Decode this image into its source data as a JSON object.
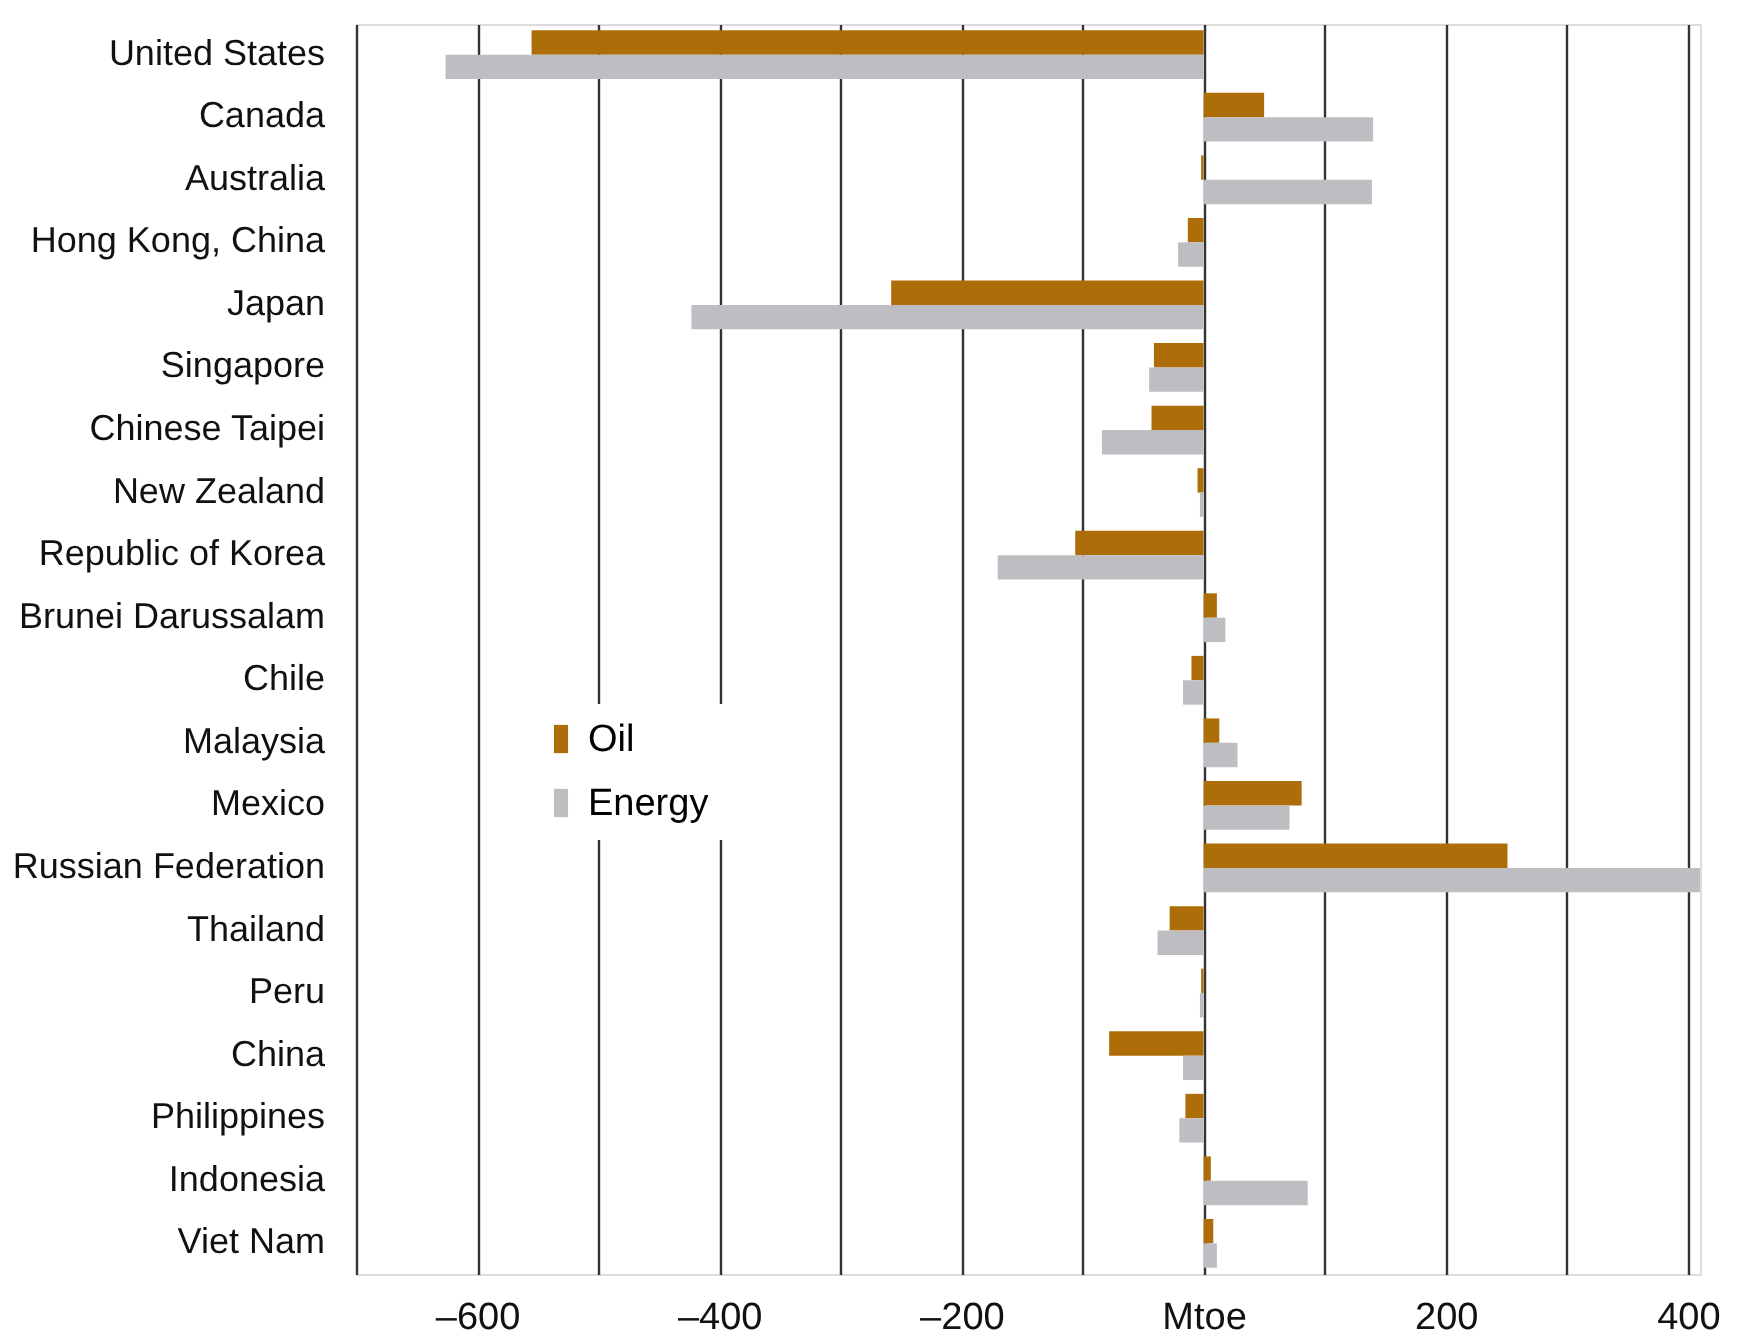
{
  "chart_data": {
    "type": "bar",
    "orientation": "horizontal",
    "categories": [
      "United States",
      "Canada",
      "Australia",
      "Hong Kong, China",
      "Japan",
      "Singapore",
      "Chinese Taipei",
      "New Zealand",
      "Republic of Korea",
      "Brunei Darussalam",
      "Chile",
      "Malaysia",
      "Mexico",
      "Russian Federation",
      "Thailand",
      "Peru",
      "China",
      "Philippines",
      "Indonesia",
      "Viet Nam"
    ],
    "series": [
      {
        "name": "Oil",
        "color": "#ad6e09",
        "values": [
          -555,
          50,
          -2,
          -13,
          -258,
          -41,
          -43,
          -5,
          -106,
          11,
          -10,
          13,
          81,
          251,
          -28,
          -2,
          -78,
          -15,
          6,
          8
        ]
      },
      {
        "name": "Energy",
        "color": "#bebec2",
        "values": [
          -626,
          140,
          139,
          -21,
          -423,
          -45,
          -84,
          -3,
          -170,
          18,
          -17,
          28,
          71,
          410,
          -38,
          -3,
          -17,
          -20,
          86,
          11
        ]
      }
    ],
    "xlim": [
      -700,
      410
    ],
    "xticks": [
      {
        "value": -700,
        "label": null
      },
      {
        "value": -600,
        "label": "–600"
      },
      {
        "value": -500,
        "label": null
      },
      {
        "value": -400,
        "label": "–400"
      },
      {
        "value": -300,
        "label": null
      },
      {
        "value": -200,
        "label": "–200"
      },
      {
        "value": -100,
        "label": null
      },
      {
        "value": 0,
        "label": "Mtoe"
      },
      {
        "value": 100,
        "label": null
      },
      200,
      {
        "value": 300,
        "label": null
      },
      400
    ],
    "grid": "x",
    "legend": "left"
  }
}
